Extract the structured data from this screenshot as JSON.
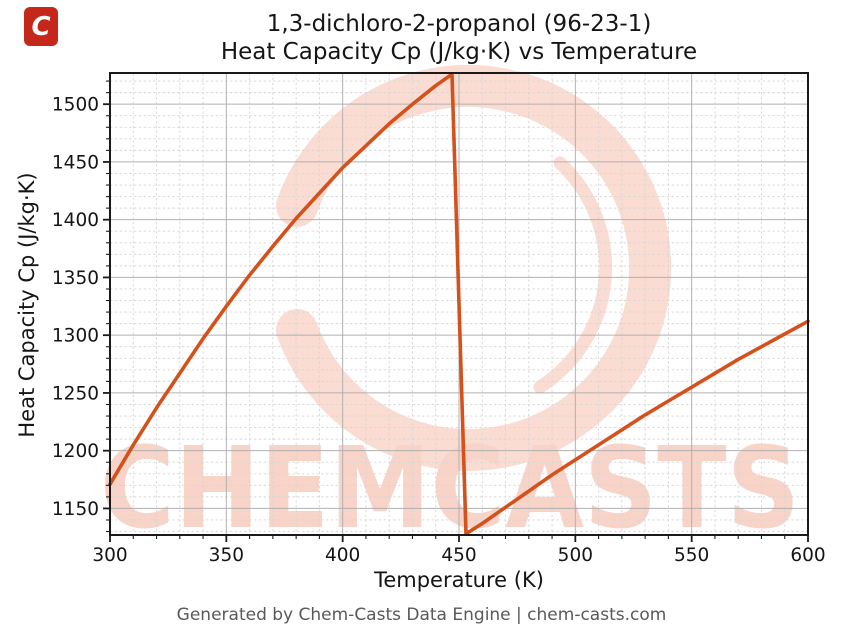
{
  "logo": {
    "letter": "C",
    "background": "#c5281b"
  },
  "watermark": {
    "text": "CHEMCASTS"
  },
  "footer": {
    "text": "Generated by Chem-Casts Data Engine | chem-casts.com"
  },
  "chart_data": {
    "type": "line",
    "title_lines": [
      "1,3-dichloro-2-propanol (96-23-1)",
      "Heat Capacity Cp (J/kg·K) vs Temperature"
    ],
    "xlabel": "Temperature (K)",
    "ylabel": "Heat Capacity Cp (J/kg·K)",
    "xlim": [
      300,
      600
    ],
    "ylim": [
      1127,
      1527
    ],
    "x_ticks": [
      300,
      350,
      400,
      450,
      500,
      550,
      600
    ],
    "y_ticks": [
      1150,
      1200,
      1250,
      1300,
      1350,
      1400,
      1450,
      1500
    ],
    "minor_step_x": 10,
    "minor_step_y": 10,
    "grid": {
      "major": "solid",
      "minor": "dashed"
    },
    "legend": "none",
    "colors": {
      "line": "#d4511c",
      "grid_major": "#b0b0b0",
      "grid_minor": "#d6d6d6",
      "axis": "#1a1a1a",
      "tick_label": "#151515",
      "watermark_ring": "#fadcd2",
      "watermark_text": "#f8d3c8"
    },
    "series": [
      {
        "name": "Heat Capacity Cp (J/kg·K)",
        "points": [
          [
            300,
            1171
          ],
          [
            310,
            1205
          ],
          [
            320,
            1237
          ],
          [
            330,
            1267
          ],
          [
            340,
            1297
          ],
          [
            350,
            1325
          ],
          [
            360,
            1352
          ],
          [
            370,
            1377
          ],
          [
            380,
            1401
          ],
          [
            390,
            1423
          ],
          [
            400,
            1445
          ],
          [
            410,
            1464
          ],
          [
            420,
            1483
          ],
          [
            430,
            1500
          ],
          [
            440,
            1516
          ],
          [
            447,
            1526
          ],
          [
            453,
            1128
          ],
          [
            460,
            1137
          ],
          [
            470,
            1151
          ],
          [
            480,
            1165
          ],
          [
            490,
            1179
          ],
          [
            500,
            1192
          ],
          [
            510,
            1205
          ],
          [
            520,
            1218
          ],
          [
            530,
            1231
          ],
          [
            540,
            1243
          ],
          [
            550,
            1255
          ],
          [
            560,
            1267
          ],
          [
            570,
            1279
          ],
          [
            580,
            1290
          ],
          [
            590,
            1301
          ],
          [
            600,
            1312
          ]
        ]
      }
    ]
  }
}
